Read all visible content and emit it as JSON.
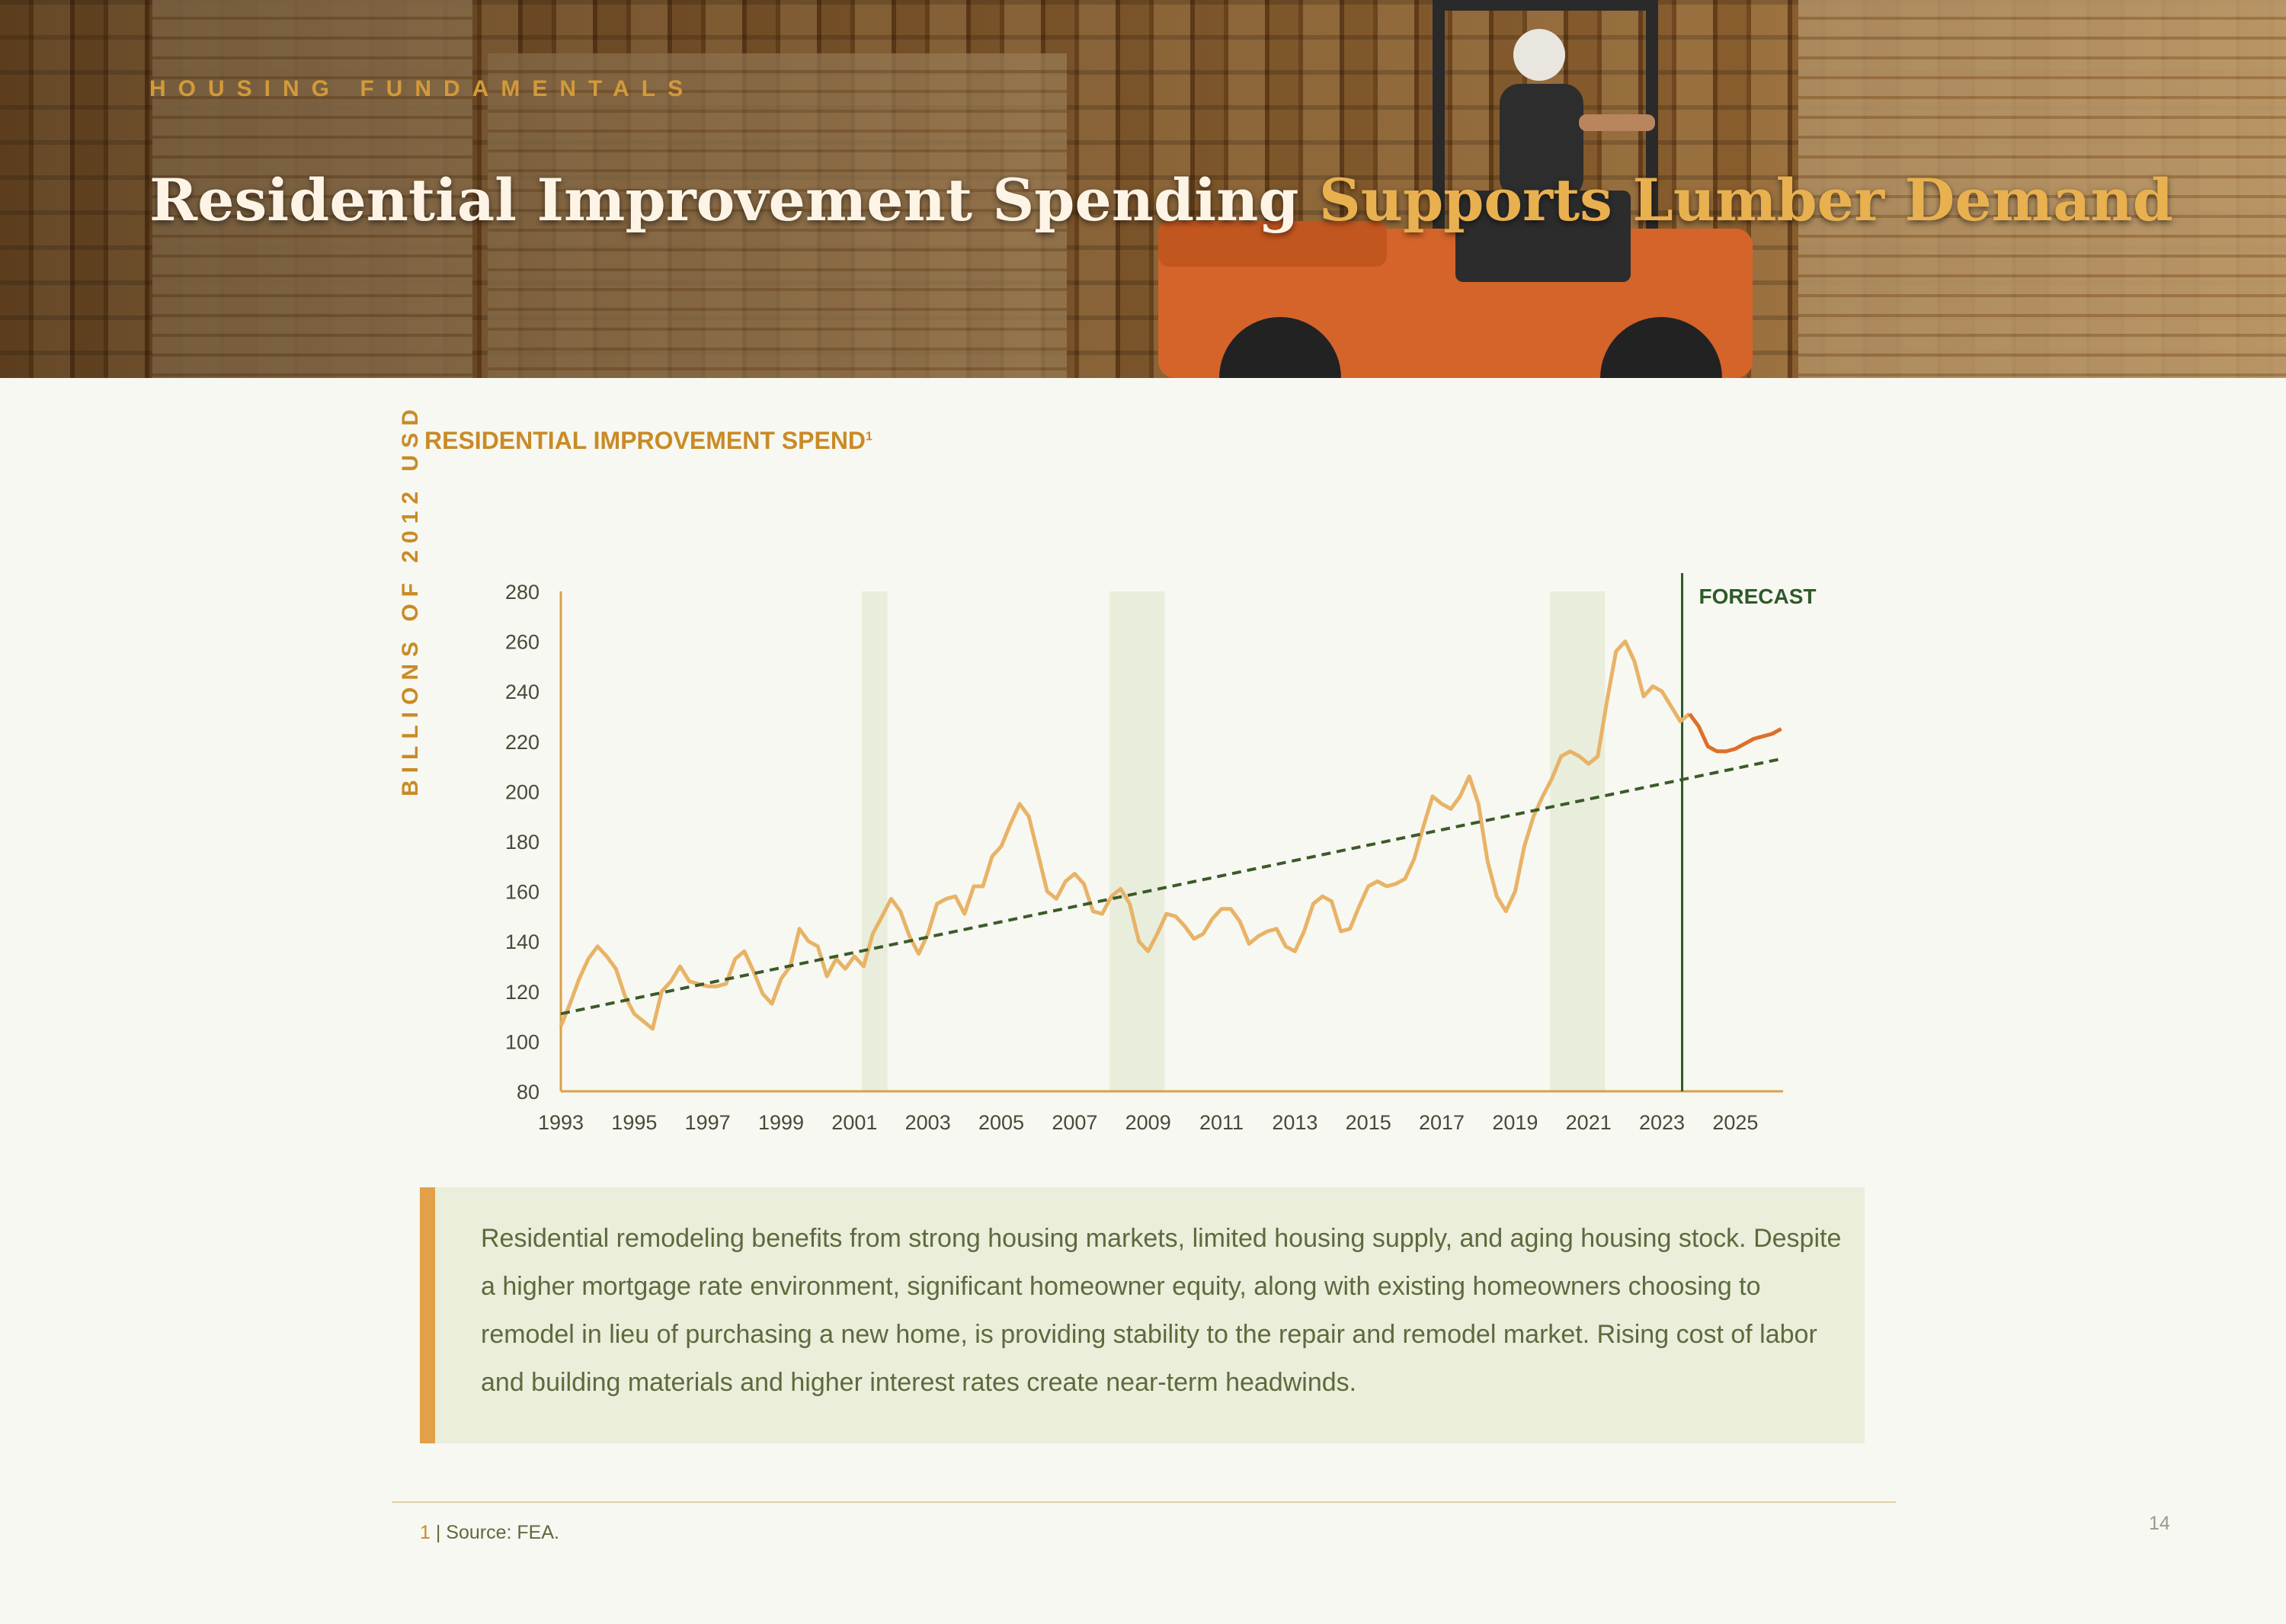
{
  "header": {
    "eyebrow": "HOUSING FUNDAMENTALS",
    "title_main": "Residential Improvement Spending ",
    "title_accent": "Supports Lumber Demand"
  },
  "chart_title": "RESIDENTIAL IMPROVEMENT SPEND",
  "chart_title_sup": "1",
  "colors": {
    "actual_line": "#e8b367",
    "forecast_line": "#dd6f2a",
    "trend_line": "#3b5a2a",
    "recession_band": "#e9eedc",
    "axis": "#d9a14a",
    "forecast_divider": "#2f5a2a",
    "accent": "#c98b26"
  },
  "chart_data": {
    "type": "line",
    "title": "RESIDENTIAL IMPROVEMENT SPEND",
    "ylabel": "BILLIONS OF 2012 USD",
    "xlabel": "",
    "xlim": [
      1993,
      2026.3
    ],
    "ylim": [
      80,
      280
    ],
    "yticks": [
      80,
      100,
      120,
      140,
      160,
      180,
      200,
      220,
      240,
      260,
      280
    ],
    "xticks": [
      1993,
      1995,
      1997,
      1999,
      2001,
      2003,
      2005,
      2007,
      2009,
      2011,
      2013,
      2015,
      2017,
      2019,
      2021,
      2023,
      2025
    ],
    "forecast_start": 2023.55,
    "forecast_label": "FORECAST",
    "recession_bands": [
      [
        2001.2,
        2001.9
      ],
      [
        2007.95,
        2009.45
      ],
      [
        2019.95,
        2021.45
      ]
    ],
    "series": [
      {
        "role": "actual",
        "x": [
          1993.0,
          1993.25,
          1993.5,
          1993.75,
          1994.0,
          1994.25,
          1994.5,
          1994.75,
          1995.0,
          1995.25,
          1995.5,
          1995.75,
          1996.0,
          1996.25,
          1996.5,
          1996.75,
          1997.0,
          1997.25,
          1997.5,
          1997.75,
          1998.0,
          1998.25,
          1998.5,
          1998.75,
          1999.0,
          1999.25,
          1999.5,
          1999.75,
          2000.0,
          2000.25,
          2000.5,
          2000.75,
          2001.0,
          2001.25,
          2001.5,
          2001.75,
          2002.0,
          2002.25,
          2002.5,
          2002.75,
          2003.0,
          2003.25,
          2003.5,
          2003.75,
          2004.0,
          2004.25,
          2004.5,
          2004.75,
          2005.0,
          2005.25,
          2005.5,
          2005.75,
          2006.0,
          2006.25,
          2006.5,
          2006.75,
          2007.0,
          2007.25,
          2007.5,
          2007.75,
          2008.0,
          2008.25,
          2008.5,
          2008.75,
          2009.0,
          2009.25,
          2009.5,
          2009.75,
          2010.0,
          2010.25,
          2010.5,
          2010.75,
          2011.0,
          2011.25,
          2011.5,
          2011.75,
          2012.0,
          2012.25,
          2012.5,
          2012.75,
          2013.0,
          2013.25,
          2013.5,
          2013.75,
          2014.0,
          2014.25,
          2014.5,
          2014.75,
          2015.0,
          2015.25,
          2015.5,
          2015.75,
          2016.0,
          2016.25,
          2016.5,
          2016.75,
          2017.0,
          2017.25,
          2017.5,
          2017.75,
          2018.0,
          2018.25,
          2018.5,
          2018.75,
          2019.0,
          2019.25,
          2019.5,
          2019.75,
          2020.0,
          2020.25,
          2020.5,
          2020.75,
          2021.0,
          2021.25,
          2021.5,
          2021.75,
          2022.0,
          2022.25,
          2022.5,
          2022.75,
          2023.0,
          2023.25,
          2023.5,
          2023.75
        ],
        "values": [
          106,
          115,
          125,
          133,
          138,
          134,
          129,
          118,
          111,
          108,
          105,
          120,
          124,
          130,
          124,
          123,
          122,
          122,
          123,
          133,
          136,
          128,
          119,
          115,
          125,
          130,
          145,
          140,
          138,
          126,
          133,
          129,
          134,
          130,
          143,
          150,
          157,
          152,
          142,
          135,
          143,
          155,
          157,
          158,
          151,
          162,
          162,
          174,
          178,
          187,
          195,
          190,
          175,
          160,
          157,
          164,
          167,
          163,
          152,
          151,
          158,
          161,
          155,
          140,
          136,
          143,
          151,
          150,
          146,
          141,
          143,
          149,
          153,
          153,
          148,
          139,
          142,
          144,
          145,
          138,
          136,
          144,
          155,
          158,
          156,
          144,
          145,
          154,
          162,
          164,
          162,
          163,
          165,
          173,
          186,
          198,
          195,
          193,
          198,
          206,
          195,
          172,
          158,
          152,
          160,
          178,
          190,
          198,
          205,
          214,
          216,
          214,
          211,
          214,
          236,
          256,
          260,
          252,
          238,
          242,
          240,
          234,
          228,
          231
        ]
      },
      {
        "role": "forecast",
        "x": [
          2023.75,
          2024.0,
          2024.25,
          2024.5,
          2024.75,
          2025.0,
          2025.25,
          2025.5,
          2025.75,
          2026.0,
          2026.25
        ],
        "values": [
          231,
          226,
          218,
          216,
          216,
          217,
          219,
          221,
          222,
          223,
          225
        ]
      },
      {
        "role": "trend",
        "x": [
          1993.0,
          2026.25
        ],
        "values": [
          111,
          213
        ]
      }
    ]
  },
  "callout_text": "Residential remodeling benefits from strong housing markets, limited housing supply, and aging housing stock. Despite a higher mortgage rate environment, significant homeowner equity, along with existing homeowners choosing to remodel in lieu of purchasing a new home, is providing stability to the repair and remodel market. Rising cost of labor and building materials and higher interest rates create near-term headwinds.",
  "footnote_num": "1",
  "footnote_text": " | Source: FEA.",
  "page_number": "14"
}
